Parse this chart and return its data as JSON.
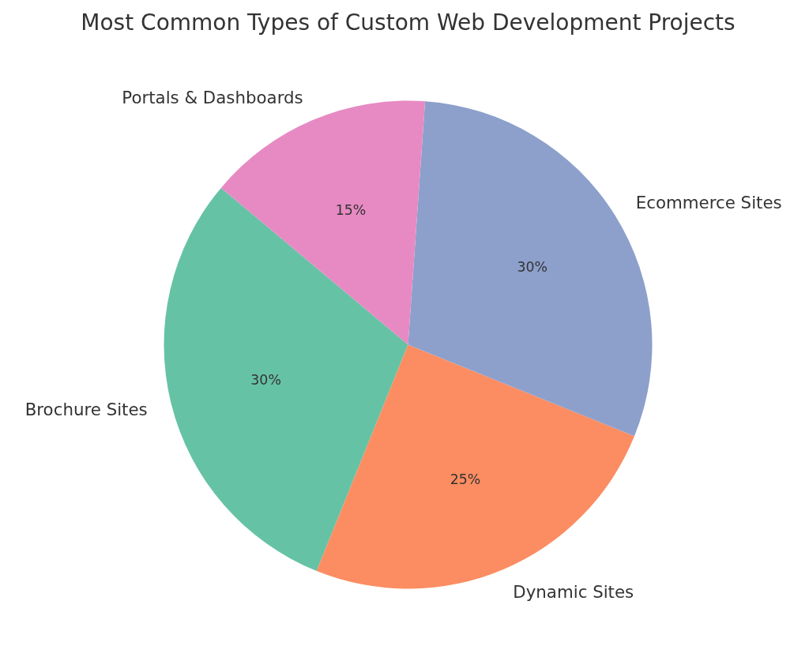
{
  "chart_data": {
    "type": "pie",
    "title": "Most Common Types of Custom Web Development Projects",
    "categories": [
      "Brochure Sites",
      "Dynamic Sites",
      "Ecommerce Sites",
      "Portals & Dashboards"
    ],
    "values": [
      30,
      25,
      30,
      15
    ],
    "colors": [
      "#66c2a5",
      "#fc8d62",
      "#8da0cb",
      "#e78ac3"
    ],
    "value_labels": [
      "30%",
      "25%",
      "30%",
      "15%"
    ]
  }
}
